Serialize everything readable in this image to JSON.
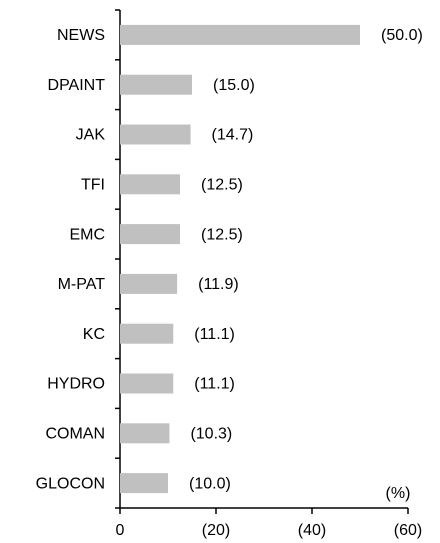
{
  "chart_data": {
    "type": "bar",
    "orientation": "horizontal",
    "categories": [
      "NEWS",
      "DPAINT",
      "JAK",
      "TFI",
      "EMC",
      "M-PAT",
      "KC",
      "HYDRO",
      "COMAN",
      "GLOCON"
    ],
    "values": [
      -50.0,
      -15.0,
      -14.7,
      -12.5,
      -12.5,
      -11.9,
      -11.1,
      -11.1,
      -10.3,
      -10.0
    ],
    "value_labels": [
      "(50.0)",
      "(15.0)",
      "(14.7)",
      "(12.5)",
      "(12.5)",
      "(11.9)",
      "(11.1)",
      "(11.1)",
      "(10.3)",
      "(10.0)"
    ],
    "color": "#c0c0c0",
    "xlim": [
      0,
      -60
    ],
    "xticks": [
      0,
      {
        "value": -20,
        "label": "(20)"
      },
      {
        "value": -40,
        "label": "(40)"
      },
      {
        "value": -60,
        "label": "(60)"
      }
    ],
    "x_axis_label": "(%)",
    "grid": false
  }
}
